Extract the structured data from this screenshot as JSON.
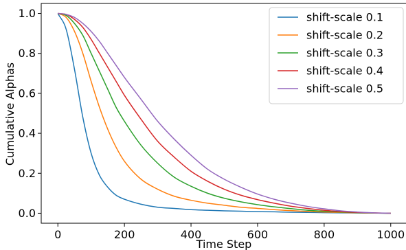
{
  "chart_data": {
    "type": "line",
    "title": "",
    "xlabel": "Time Step",
    "ylabel": "Cumulative Alphas",
    "xlim": [
      -50,
      1050
    ],
    "ylim": [
      -0.05,
      1.05
    ],
    "xticks": [
      0,
      200,
      400,
      600,
      800,
      1000
    ],
    "xtick_labels": [
      "0",
      "200",
      "400",
      "600",
      "800",
      "1000"
    ],
    "yticks": [
      0.0,
      0.2,
      0.4,
      0.6,
      0.8,
      1.0
    ],
    "ytick_labels": [
      "0.0",
      "0.2",
      "0.4",
      "0.6",
      "0.8",
      "1.0"
    ],
    "grid": false,
    "legend_position": "top-right",
    "series": [
      {
        "name": "shift-scale 0.1",
        "color": "#1f77b4",
        "x": [
          0,
          25,
          50,
          75,
          100,
          125,
          150,
          175,
          200,
          250,
          300,
          350,
          400,
          450,
          500,
          550,
          600,
          650,
          700,
          750,
          800,
          850,
          900,
          950,
          1000
        ],
        "y": [
          1.0,
          0.92,
          0.72,
          0.48,
          0.3,
          0.19,
          0.13,
          0.09,
          0.07,
          0.045,
          0.03,
          0.024,
          0.018,
          0.015,
          0.012,
          0.01,
          0.008,
          0.007,
          0.005,
          0.004,
          0.003,
          0.002,
          0.001,
          0.0005,
          0.0
        ]
      },
      {
        "name": "shift-scale 0.2",
        "color": "#ff7f0e",
        "x": [
          0,
          25,
          50,
          75,
          100,
          125,
          150,
          175,
          200,
          250,
          300,
          350,
          400,
          450,
          500,
          550,
          600,
          650,
          700,
          750,
          800,
          850,
          900,
          950,
          1000
        ],
        "y": [
          1.0,
          0.98,
          0.91,
          0.8,
          0.66,
          0.53,
          0.42,
          0.33,
          0.26,
          0.17,
          0.12,
          0.085,
          0.065,
          0.05,
          0.04,
          0.03,
          0.024,
          0.018,
          0.013,
          0.009,
          0.006,
          0.004,
          0.002,
          0.001,
          0.0
        ]
      },
      {
        "name": "shift-scale 0.3",
        "color": "#2ca02c",
        "x": [
          0,
          25,
          50,
          75,
          100,
          125,
          150,
          175,
          200,
          250,
          300,
          350,
          400,
          450,
          500,
          550,
          600,
          650,
          700,
          750,
          800,
          850,
          900,
          950,
          1000
        ],
        "y": [
          1.0,
          0.99,
          0.95,
          0.89,
          0.8,
          0.71,
          0.62,
          0.53,
          0.46,
          0.34,
          0.25,
          0.18,
          0.135,
          0.1,
          0.075,
          0.057,
          0.043,
          0.032,
          0.023,
          0.015,
          0.01,
          0.006,
          0.003,
          0.001,
          0.0
        ]
      },
      {
        "name": "shift-scale 0.4",
        "color": "#d62728",
        "x": [
          0,
          25,
          50,
          75,
          100,
          125,
          150,
          175,
          200,
          250,
          300,
          350,
          400,
          450,
          500,
          550,
          600,
          650,
          700,
          750,
          800,
          850,
          900,
          950,
          1000
        ],
        "y": [
          1.0,
          0.995,
          0.97,
          0.93,
          0.87,
          0.8,
          0.73,
          0.66,
          0.59,
          0.47,
          0.36,
          0.28,
          0.21,
          0.16,
          0.12,
          0.09,
          0.068,
          0.05,
          0.035,
          0.024,
          0.015,
          0.008,
          0.004,
          0.0015,
          0.0
        ]
      },
      {
        "name": "shift-scale 0.5",
        "color": "#9467bd",
        "x": [
          0,
          25,
          50,
          75,
          100,
          125,
          150,
          175,
          200,
          250,
          300,
          350,
          400,
          450,
          500,
          550,
          600,
          650,
          700,
          750,
          800,
          850,
          900,
          950,
          1000
        ],
        "y": [
          1.0,
          0.995,
          0.98,
          0.95,
          0.91,
          0.86,
          0.8,
          0.74,
          0.68,
          0.57,
          0.46,
          0.37,
          0.29,
          0.22,
          0.17,
          0.13,
          0.096,
          0.07,
          0.05,
          0.034,
          0.022,
          0.012,
          0.006,
          0.002,
          0.0
        ]
      }
    ]
  }
}
